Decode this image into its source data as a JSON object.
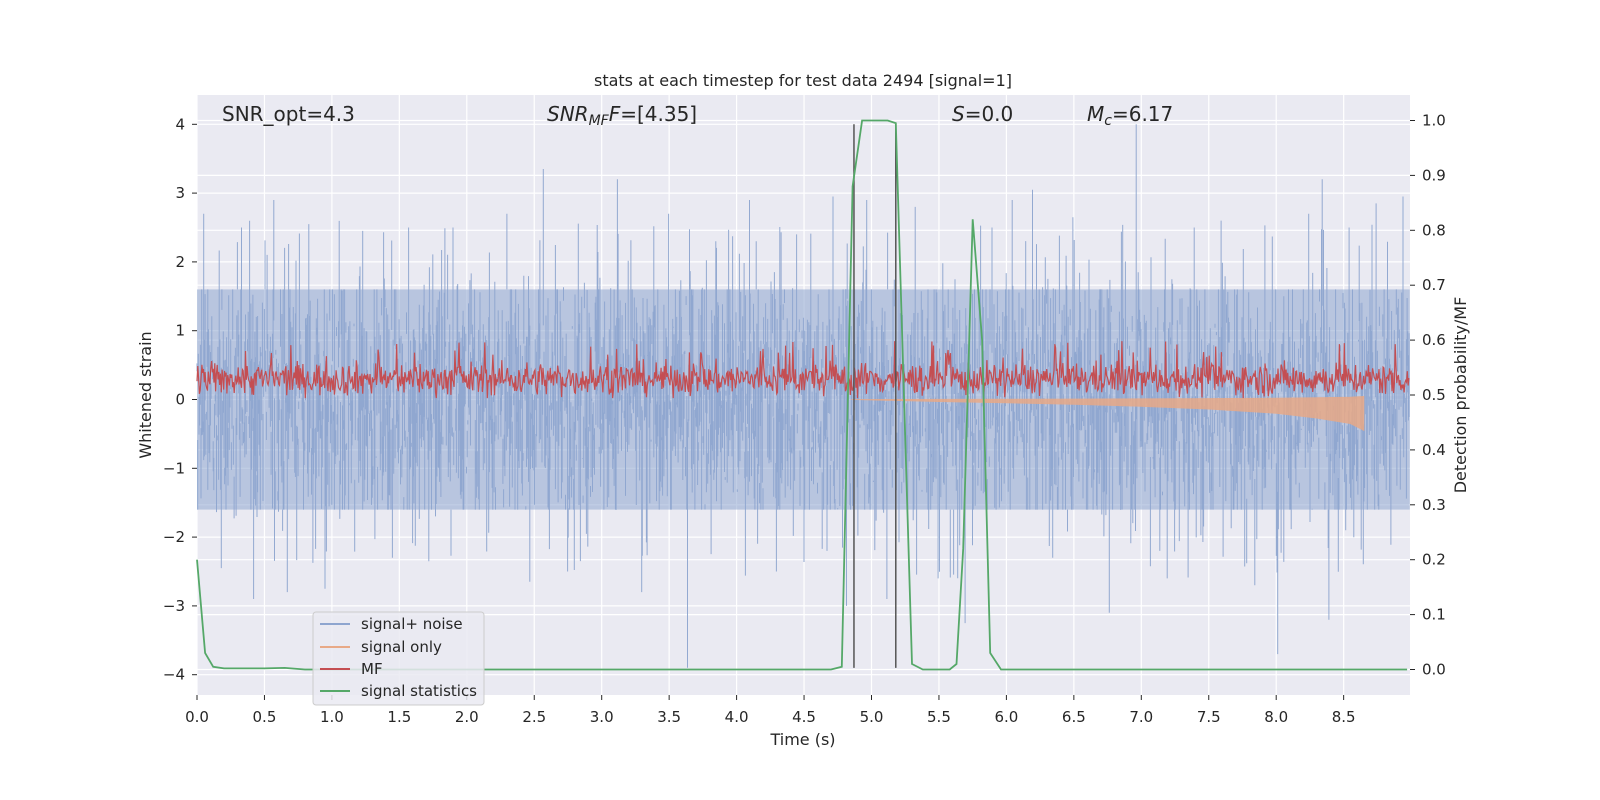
{
  "chart_data": {
    "type": "line",
    "title": "stats at each timestep for test data 2494 [signal=1]",
    "xlabel": "Time (s)",
    "ylabel_left": "Whitened strain",
    "ylabel_right": "Detection probability/MF",
    "xlim": [
      0.0,
      9.0
    ],
    "ylim_left": [
      -4.3,
      4.4
    ],
    "ylim_right": [
      -0.05,
      1.05
    ],
    "xticks": [
      0.0,
      0.5,
      1.0,
      1.5,
      2.0,
      2.5,
      3.0,
      3.5,
      4.0,
      4.5,
      5.0,
      5.5,
      6.0,
      6.5,
      7.0,
      7.5,
      8.0,
      8.5
    ],
    "xtick_labels": [
      "0.0",
      "0.5",
      "1.0",
      "1.5",
      "2.0",
      "2.5",
      "3.0",
      "3.5",
      "4.0",
      "4.5",
      "5.0",
      "5.5",
      "6.0",
      "6.5",
      "7.0",
      "7.5",
      "8.0",
      "8.5"
    ],
    "yticks_left": [
      -4,
      -3,
      -2,
      -1,
      0,
      1,
      2,
      3,
      4
    ],
    "ytick_labels_left": [
      "−4",
      "−3",
      "−2",
      "−1",
      "0",
      "1",
      "2",
      "3",
      "4"
    ],
    "yticks_right": [
      0.0,
      0.1,
      0.2,
      0.3,
      0.4,
      0.5,
      0.6,
      0.7,
      0.8,
      0.9,
      1.0
    ],
    "ytick_labels_right": [
      "0.0",
      "0.1",
      "0.2",
      "0.3",
      "0.4",
      "0.5",
      "0.6",
      "0.7",
      "0.8",
      "0.9",
      "1.0"
    ],
    "annotations": {
      "snr_opt": "SNR_opt=4.3",
      "snr_mf_main": "SNR",
      "snr_mf_sub": "MF",
      "snr_mf_value": "=[4.35]",
      "s_main": "S",
      "s_value": "=0.0",
      "mc_main": "M",
      "mc_sub": "c",
      "mc_value": "=6.17"
    },
    "legend": {
      "location": "lower-left",
      "entries": [
        "signal+ noise",
        "signal only",
        "MF",
        "signal statistics"
      ]
    },
    "series": [
      {
        "name": "signal+ noise",
        "axis": "left",
        "color": "#8ea5cf",
        "description": "whitened noisy strain, approx. range -3.9 to 4.0",
        "typical_range": [
          -1.6,
          1.6
        ],
        "spikes": [
          {
            "x": 0.05,
            "y": 2.7
          },
          {
            "x": 0.18,
            "y": -2.45
          },
          {
            "x": 0.33,
            "y": 2.5
          },
          {
            "x": 0.42,
            "y": -2.9
          },
          {
            "x": 0.57,
            "y": 2.9
          },
          {
            "x": 0.67,
            "y": -2.8
          },
          {
            "x": 0.83,
            "y": 2.55
          },
          {
            "x": 0.95,
            "y": -2.75
          },
          {
            "x": 1.23,
            "y": 2.45
          },
          {
            "x": 1.45,
            "y": -2.3
          },
          {
            "x": 1.57,
            "y": 2.5
          },
          {
            "x": 1.72,
            "y": -2.35
          },
          {
            "x": 1.9,
            "y": 2.5
          },
          {
            "x": 2.3,
            "y": 2.7
          },
          {
            "x": 2.47,
            "y": -2.65
          },
          {
            "x": 2.57,
            "y": 3.35
          },
          {
            "x": 2.75,
            "y": -2.5
          },
          {
            "x": 3.12,
            "y": 3.2
          },
          {
            "x": 3.3,
            "y": -2.8
          },
          {
            "x": 3.5,
            "y": 2.7
          },
          {
            "x": 3.64,
            "y": -3.9
          },
          {
            "x": 3.85,
            "y": 2.3
          },
          {
            "x": 4.1,
            "y": 2.9
          },
          {
            "x": 4.3,
            "y": -2.5
          },
          {
            "x": 4.45,
            "y": 2.4
          },
          {
            "x": 4.72,
            "y": 2.95
          },
          {
            "x": 4.82,
            "y": -3.0
          },
          {
            "x": 4.97,
            "y": 2.9
          },
          {
            "x": 5.12,
            "y": -2.9
          },
          {
            "x": 5.33,
            "y": 2.8
          },
          {
            "x": 5.5,
            "y": -2.6
          },
          {
            "x": 5.7,
            "y": -3.25
          },
          {
            "x": 5.9,
            "y": 2.5
          },
          {
            "x": 6.05,
            "y": 2.9
          },
          {
            "x": 6.2,
            "y": 3.05
          },
          {
            "x": 6.35,
            "y": -2.3
          },
          {
            "x": 6.5,
            "y": 2.65
          },
          {
            "x": 6.77,
            "y": -3.1
          },
          {
            "x": 6.97,
            "y": 4.0
          },
          {
            "x": 7.2,
            "y": -2.6
          },
          {
            "x": 7.4,
            "y": 2.5
          },
          {
            "x": 7.6,
            "y": 2.6
          },
          {
            "x": 7.85,
            "y": -2.7
          },
          {
            "x": 8.02,
            "y": -3.7
          },
          {
            "x": 8.25,
            "y": 2.7
          },
          {
            "x": 8.35,
            "y": 3.2
          },
          {
            "x": 8.4,
            "y": -3.2
          },
          {
            "x": 8.55,
            "y": 2.5
          },
          {
            "x": 8.75,
            "y": 2.85
          },
          {
            "x": 8.95,
            "y": 2.95
          }
        ]
      },
      {
        "name": "signal only",
        "axis": "left",
        "color": "#e8a987",
        "description": "chirp signal band beginning near t=4.85 s, growing until t=8.65 s",
        "envelope": [
          {
            "x": 4.85,
            "y": 0.0
          },
          {
            "x": 5.5,
            "y": -0.03
          },
          {
            "x": 6.0,
            "y": -0.05
          },
          {
            "x": 6.5,
            "y": -0.07
          },
          {
            "x": 7.0,
            "y": -0.1
          },
          {
            "x": 7.5,
            "y": -0.14
          },
          {
            "x": 8.0,
            "y": -0.2
          },
          {
            "x": 8.3,
            "y": -0.27
          },
          {
            "x": 8.55,
            "y": -0.35
          },
          {
            "x": 8.65,
            "y": -0.45
          }
        ],
        "end_x": 8.65
      },
      {
        "name": "MF",
        "axis": "left",
        "color": "#c44e52",
        "description": "matched filter output, band approx. 0.05 to 0.6 with spikes to ~0.85",
        "typical_range": [
          0.05,
          0.6
        ]
      },
      {
        "name": "signal statistics",
        "axis": "right",
        "color": "#55a868",
        "points": [
          {
            "x": 0.0,
            "y": 0.2
          },
          {
            "x": 0.06,
            "y": 0.03
          },
          {
            "x": 0.12,
            "y": 0.005
          },
          {
            "x": 0.2,
            "y": 0.002
          },
          {
            "x": 0.5,
            "y": 0.002
          },
          {
            "x": 0.65,
            "y": 0.003
          },
          {
            "x": 0.8,
            "y": 0.0
          },
          {
            "x": 4.7,
            "y": 0.0
          },
          {
            "x": 4.78,
            "y": 0.005
          },
          {
            "x": 4.86,
            "y": 0.88
          },
          {
            "x": 4.93,
            "y": 1.0
          },
          {
            "x": 5.12,
            "y": 1.0
          },
          {
            "x": 5.18,
            "y": 0.995
          },
          {
            "x": 5.3,
            "y": 0.01
          },
          {
            "x": 5.38,
            "y": 0.0
          },
          {
            "x": 5.58,
            "y": 0.0
          },
          {
            "x": 5.63,
            "y": 0.01
          },
          {
            "x": 5.68,
            "y": 0.22
          },
          {
            "x": 5.75,
            "y": 0.82
          },
          {
            "x": 5.82,
            "y": 0.6
          },
          {
            "x": 5.88,
            "y": 0.03
          },
          {
            "x": 5.96,
            "y": 0.0
          },
          {
            "x": 8.97,
            "y": 0.0
          }
        ]
      }
    ],
    "vertical_markers": [
      {
        "x": 4.87,
        "y_top": 4.0,
        "y_bottom": -3.9,
        "color": "#555555"
      },
      {
        "x": 5.18,
        "y_top": 4.0,
        "y_bottom": -3.9,
        "color": "#555555"
      }
    ]
  }
}
